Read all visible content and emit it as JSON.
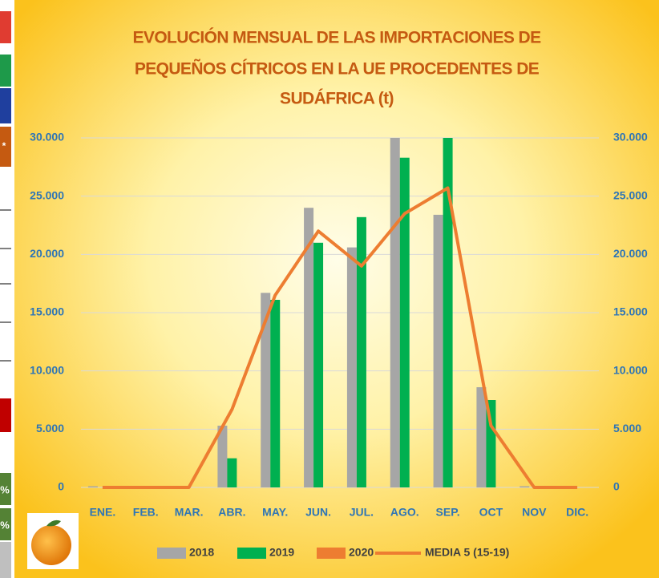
{
  "chart_data": {
    "type": "bar",
    "title_lines": [
      "EVOLUCIÓN MENSUAL DE LAS IMPORTACIONES DE",
      "PEQUEÑOS CÍTRICOS EN LA UE PROCEDENTES DE",
      "SUDÁFRICA (t)"
    ],
    "categories": [
      "ENE.",
      "FEB.",
      "MAR.",
      "ABR.",
      "MAY.",
      "JUN.",
      "JUL.",
      "AGO.",
      "SEP.",
      "OCT",
      "NOV",
      "DIC."
    ],
    "series": [
      {
        "name": "2018",
        "type": "bar",
        "color": "#a6a6a6",
        "values": [
          100,
          0,
          0,
          5300,
          16700,
          24000,
          20600,
          30000,
          23400,
          8600,
          100,
          0
        ]
      },
      {
        "name": "2019",
        "type": "bar",
        "color": "#00b050",
        "values": [
          0,
          0,
          0,
          2500,
          16100,
          21000,
          23200,
          28300,
          30000,
          7500,
          0,
          0
        ]
      },
      {
        "name": "2020",
        "type": "bar",
        "color": "#ed7d31",
        "values": [
          null,
          null,
          null,
          null,
          null,
          null,
          null,
          null,
          null,
          null,
          null,
          null
        ]
      },
      {
        "name": "MEDIA 5 (15-19)",
        "type": "line",
        "color": "#ed7d31",
        "values": [
          0,
          0,
          0,
          6700,
          16500,
          22000,
          19000,
          23500,
          25700,
          5300,
          0,
          0
        ]
      }
    ],
    "ylim": [
      0,
      30000
    ],
    "yticks": [
      {
        "value": 0,
        "label": "0"
      },
      {
        "value": 5000,
        "label": "5.000"
      },
      {
        "value": 10000,
        "label": "10.000"
      },
      {
        "value": 15000,
        "label": "15.000"
      },
      {
        "value": 20000,
        "label": "20.000"
      },
      {
        "value": 25000,
        "label": "25.000"
      },
      {
        "value": 30000,
        "label": "30.000"
      }
    ],
    "y2lim": [
      0,
      30000
    ],
    "y2ticks": [
      {
        "value": 0,
        "label": "0"
      },
      {
        "value": 5000,
        "label": "5.000"
      },
      {
        "value": 10000,
        "label": "10.000"
      },
      {
        "value": 15000,
        "label": "15.000"
      },
      {
        "value": 20000,
        "label": "20.000"
      },
      {
        "value": 25000,
        "label": "25.000"
      },
      {
        "value": 30000,
        "label": "30.000"
      }
    ],
    "grid": true
  },
  "side_marks": [
    "*",
    "%",
    "%"
  ]
}
